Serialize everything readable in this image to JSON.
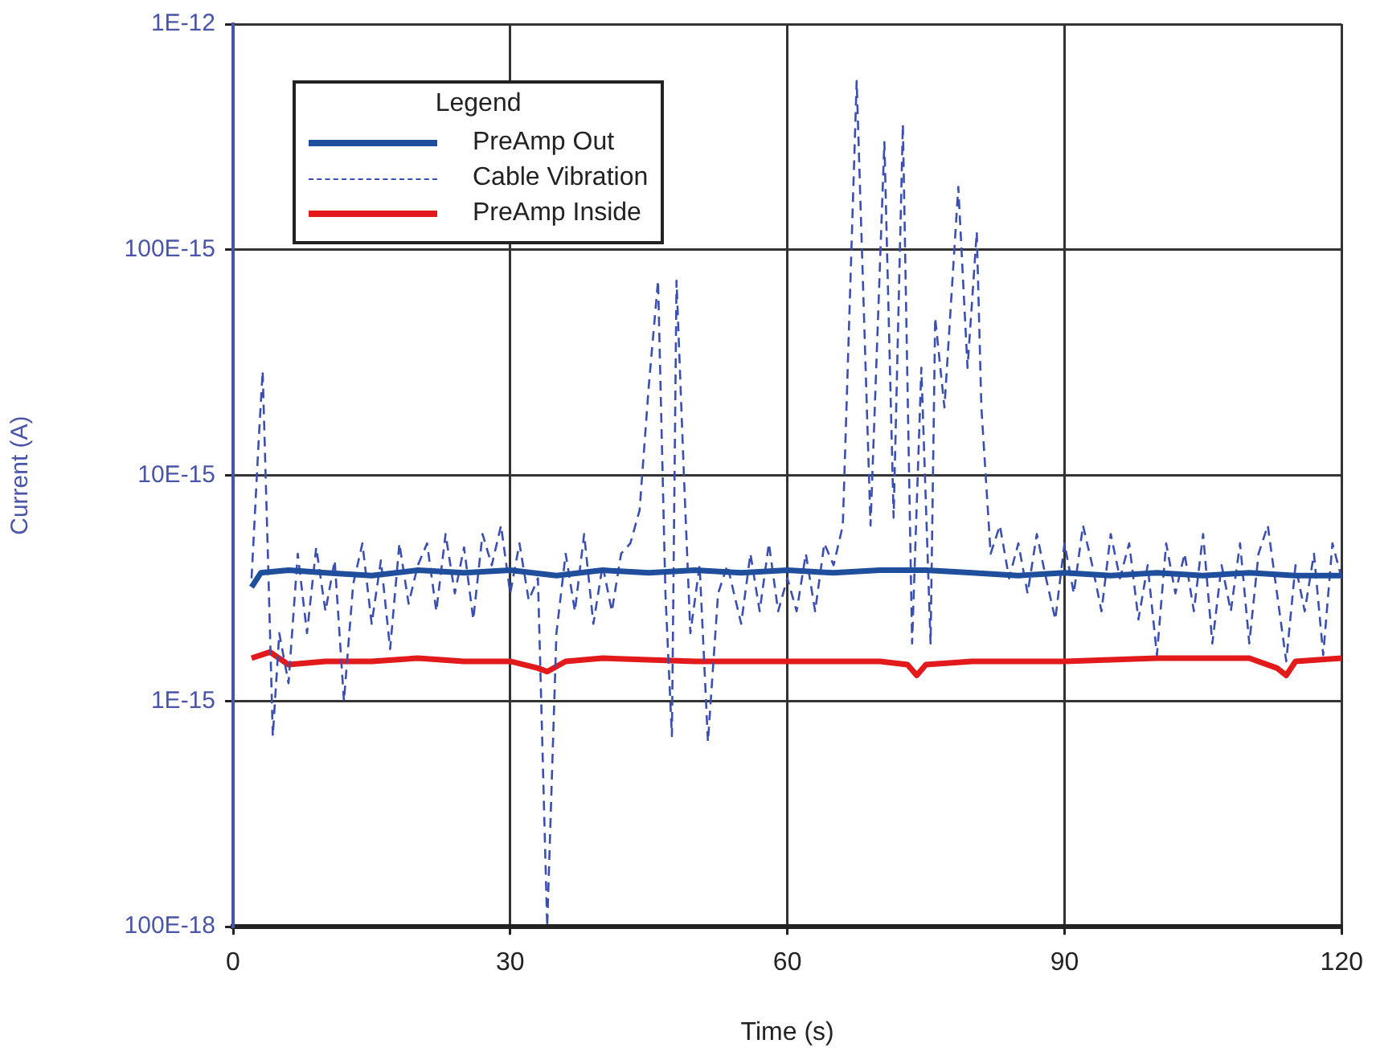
{
  "chart_data": {
    "type": "line",
    "xlabel": "Time (s)",
    "ylabel": "Current (A)",
    "legend_title": "Legend",
    "legend": "top left",
    "grid": true,
    "log": "y",
    "marker": "none",
    "xlim": [
      0,
      120
    ],
    "xticks": [
      0,
      30,
      60,
      90,
      120
    ],
    "ylim": [
      1e-16,
      1e-12
    ],
    "yticks": [
      {
        "value": 1e-16,
        "label": "100E-18"
      },
      {
        "value": 1e-15,
        "label": "1E-15"
      },
      {
        "value": 1e-14,
        "label": "10E-15"
      },
      {
        "value": 1e-13,
        "label": "100E-15"
      },
      {
        "value": 1e-12,
        "label": "1E-12"
      }
    ],
    "series": [
      {
        "name": "PreAmp Out",
        "color": "#1f4e9c",
        "line_style": "solid",
        "x": [
          2,
          3,
          6,
          10,
          15,
          20,
          25,
          30,
          35,
          40,
          45,
          50,
          55,
          60,
          65,
          70,
          75,
          80,
          85,
          90,
          95,
          100,
          105,
          110,
          115,
          120
        ],
        "values": [
          3.2e-15,
          3.7e-15,
          3.8e-15,
          3.7e-15,
          3.6e-15,
          3.8e-15,
          3.7e-15,
          3.8e-15,
          3.6e-15,
          3.8e-15,
          3.7e-15,
          3.8e-15,
          3.7e-15,
          3.8e-15,
          3.7e-15,
          3.8e-15,
          3.8e-15,
          3.7e-15,
          3.6e-15,
          3.7e-15,
          3.6e-15,
          3.7e-15,
          3.6e-15,
          3.7e-15,
          3.6e-15,
          3.6e-15
        ]
      },
      {
        "name": "Cable Vibration",
        "color": "#3a4fb0",
        "line_style": "dashed",
        "x": [
          2,
          2.8,
          3.2,
          3.8,
          4.3,
          5,
          6,
          7,
          8,
          9,
          10,
          11,
          12,
          13,
          14,
          15,
          16,
          17,
          18,
          19,
          20,
          21,
          22,
          23,
          24,
          25,
          26,
          27,
          28,
          29,
          30,
          31,
          32,
          33,
          34,
          35,
          36,
          37,
          38,
          39,
          40,
          41,
          42,
          43,
          44,
          45,
          46,
          46.8,
          47.5,
          48,
          48.8,
          49.5,
          50.5,
          51.4,
          52.5,
          53.5,
          55,
          56,
          57,
          58,
          59,
          60,
          61,
          62,
          63,
          64,
          65,
          66,
          67.5,
          69,
          70.5,
          71.5,
          72.5,
          73.5,
          74.5,
          75.5,
          76,
          77,
          78.5,
          79.5,
          80.5,
          81,
          82,
          83,
          84,
          85,
          86,
          87,
          88,
          89,
          90,
          91,
          92,
          93,
          94,
          95,
          96,
          97,
          98,
          99,
          100,
          101,
          102,
          103,
          104,
          105,
          106,
          107,
          108,
          109,
          110,
          111,
          112,
          113,
          114,
          115,
          116,
          117,
          118,
          119,
          120
        ],
        "values": [
          3.5e-15,
          1.5e-14,
          2.9e-14,
          4e-15,
          7e-16,
          2e-15,
          1.2e-15,
          4.5e-15,
          2e-15,
          4.8e-15,
          2.5e-15,
          4.2e-15,
          1e-15,
          3.3e-15,
          5e-15,
          2.2e-15,
          4.2e-15,
          1.7e-15,
          5e-15,
          2.7e-15,
          4e-15,
          5e-15,
          2.5e-15,
          5.5e-15,
          3e-15,
          4.8e-15,
          2.3e-15,
          5.5e-15,
          4e-15,
          6e-15,
          3e-15,
          5e-15,
          2.8e-15,
          3.5e-15,
          1e-16,
          2e-15,
          4.5e-15,
          2.5e-15,
          5.5e-15,
          2.2e-15,
          4e-15,
          2.5e-15,
          4.5e-15,
          5e-15,
          7e-15,
          2.5e-14,
          7.3e-14,
          3e-15,
          7e-16,
          7.3e-14,
          1e-14,
          2e-15,
          4e-15,
          6.6e-16,
          3e-15,
          4e-15,
          2.2e-15,
          4.5e-15,
          2.5e-15,
          5e-15,
          2.5e-15,
          3.5e-15,
          2.5e-15,
          4.5e-15,
          2.5e-15,
          5e-15,
          4e-15,
          6e-15,
          5.6e-13,
          6e-15,
          3e-13,
          6.5e-15,
          3.6e-13,
          1.8e-15,
          3e-14,
          1.8e-15,
          5e-14,
          2e-14,
          1.9e-13,
          3e-14,
          1.2e-13,
          2e-14,
          4.5e-15,
          6e-15,
          3.5e-15,
          5e-15,
          3e-15,
          5.5e-15,
          3.5e-15,
          2.3e-15,
          5e-15,
          3e-15,
          6e-15,
          4e-15,
          2.5e-15,
          5.5e-15,
          3.5e-15,
          5e-15,
          2.3e-15,
          4e-15,
          1.6e-15,
          5e-15,
          3e-15,
          4.5e-15,
          2.5e-15,
          5.5e-15,
          1.8e-15,
          4e-15,
          2.5e-15,
          5e-15,
          1.8e-15,
          4.5e-15,
          6e-15,
          3e-15,
          1.5e-15,
          4e-15,
          2.5e-15,
          4.5e-15,
          1.6e-15,
          5e-15,
          3.5e-15
        ]
      },
      {
        "name": "PreAmp Inside",
        "color": "#e31a1c",
        "line_style": "solid",
        "x": [
          2,
          4,
          6,
          10,
          15,
          20,
          25,
          30,
          33,
          34,
          36,
          40,
          50,
          60,
          70,
          73,
          74,
          75,
          80,
          90,
          100,
          110,
          113,
          114,
          115,
          120
        ],
        "values": [
          1.55e-15,
          1.65e-15,
          1.45e-15,
          1.5e-15,
          1.5e-15,
          1.55e-15,
          1.5e-15,
          1.5e-15,
          1.4e-15,
          1.35e-15,
          1.5e-15,
          1.55e-15,
          1.5e-15,
          1.5e-15,
          1.5e-15,
          1.45e-15,
          1.3e-15,
          1.45e-15,
          1.5e-15,
          1.5e-15,
          1.55e-15,
          1.55e-15,
          1.4e-15,
          1.3e-15,
          1.5e-15,
          1.55e-15
        ]
      }
    ]
  }
}
